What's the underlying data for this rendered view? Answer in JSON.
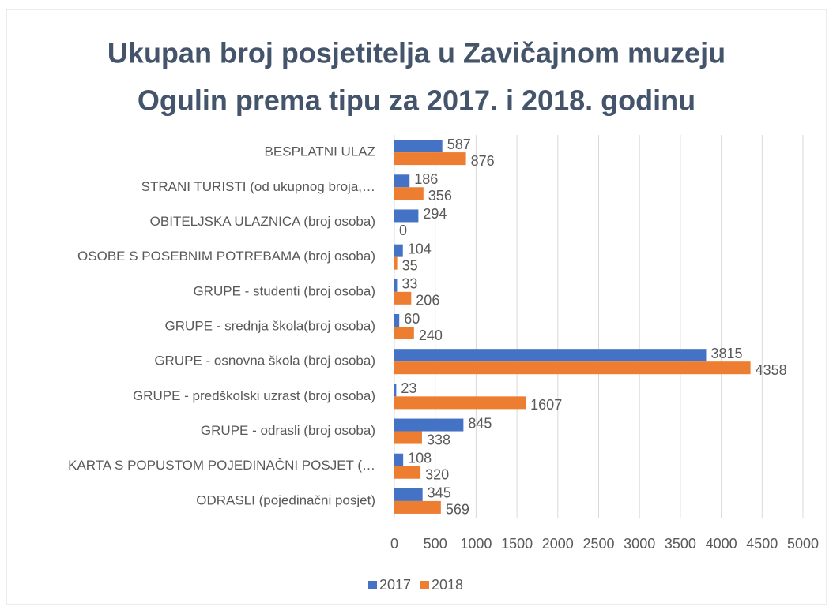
{
  "chart_data": {
    "type": "bar",
    "orientation": "horizontal",
    "title": [
      "Ukupan broj posjetitelja u Zavičajnom muzeju",
      "Ogulin prema tipu za 2017. i 2018. godinu"
    ],
    "categories": [
      "BESPLATNI ULAZ",
      "STRANI TURISTI (od ukupnog broja,…",
      "OBITELJSKA ULAZNICA (broj osoba)",
      "OSOBE S POSEBNIM POTREBAMA (broj osoba)",
      "GRUPE - studenti (broj osoba)",
      "GRUPE - srednja škola(broj osoba)",
      "GRUPE - osnovna škola (broj osoba)",
      "GRUPE - predškolski uzrast (broj osoba)",
      "GRUPE - odrasli (broj osoba)",
      "KARTA S POPUSTOM POJEDINAČNI POSJET (…",
      "ODRASLI (pojedinačni posjet)"
    ],
    "series": [
      {
        "name": "2017",
        "color": "#4472c4",
        "values": [
          587,
          186,
          294,
          104,
          33,
          60,
          3815,
          23,
          845,
          108,
          345
        ]
      },
      {
        "name": "2018",
        "color": "#ed7d31",
        "values": [
          876,
          356,
          0,
          35,
          206,
          240,
          4358,
          1607,
          338,
          320,
          569
        ]
      }
    ],
    "xlim": [
      0,
      5000
    ],
    "xticks": [
      0,
      500,
      1000,
      1500,
      2000,
      2500,
      3000,
      3500,
      4000,
      4500,
      5000
    ],
    "grid": true,
    "legend": "bottom"
  }
}
